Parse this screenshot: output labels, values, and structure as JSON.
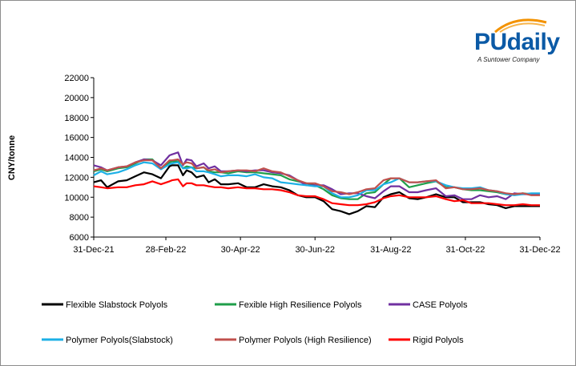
{
  "logo": {
    "brand": "PUdaily",
    "tagline": "A Suntower Company"
  },
  "colors": {
    "flexible_slabstock": "#000000",
    "flexible_hr": "#1f9e4a",
    "case": "#7030a0",
    "polymer_slabstock": "#1cb0e6",
    "polymer_hr": "#c0504d",
    "rigid": "#ff0000",
    "logo_blue": "#0b5aa6",
    "logo_orange": "#f39200"
  },
  "chart_data": {
    "type": "line",
    "title": "",
    "xlabel": "",
    "ylabel": "CNY/tonne",
    "ylim": [
      6000,
      22000
    ],
    "yticks": [
      6000,
      8000,
      10000,
      12000,
      14000,
      16000,
      18000,
      20000,
      22000
    ],
    "ytick_labels": [
      "6000",
      "8000",
      "10000",
      "12000",
      "14000",
      "16000",
      "18000",
      "20000",
      "22000"
    ],
    "xlim": [
      0,
      365
    ],
    "xticks": [
      0,
      59,
      120,
      181,
      243,
      304,
      365
    ],
    "xtick_labels": [
      "31-Dec-21",
      "28-Feb-22",
      "30-Apr-22",
      "30-Jun-22",
      "31-Aug-22",
      "31-Oct-22",
      "31-Dec-22"
    ],
    "x_unit": "days since 31-Dec-21",
    "x": [
      0,
      6,
      11,
      20,
      27,
      34,
      41,
      48,
      55,
      62,
      64,
      69,
      73,
      76,
      80,
      84,
      90,
      94,
      99,
      104,
      110,
      118,
      125,
      132,
      139,
      146,
      153,
      160,
      167,
      174,
      181,
      188,
      195,
      202,
      209,
      216,
      223,
      230,
      237,
      243,
      250,
      258,
      265,
      272,
      280,
      288,
      295,
      302,
      309,
      316,
      323,
      330,
      337,
      344,
      351,
      358,
      365
    ],
    "series": [
      {
        "name": "Flexible Slabstock Polyols",
        "values": [
          11500,
          11700,
          11000,
          11600,
          11700,
          12100,
          12500,
          12300,
          11900,
          13100,
          13200,
          13200,
          12200,
          12700,
          12500,
          12000,
          12200,
          11500,
          11800,
          11300,
          11300,
          11400,
          11000,
          11000,
          11300,
          11100,
          11000,
          10700,
          10200,
          10000,
          10000,
          9600,
          8800,
          8600,
          8300,
          8600,
          9100,
          9000,
          10000,
          10300,
          10500,
          9900,
          9800,
          10000,
          10300,
          10000,
          10000,
          9500,
          9500,
          9500,
          9300,
          9200,
          8900,
          9100,
          9100,
          9100,
          9100
        ]
      },
      {
        "name": "Fexible High Resilience Polyols",
        "values": [
          12600,
          12800,
          12600,
          12900,
          13000,
          13400,
          13800,
          13800,
          12900,
          13500,
          13600,
          13600,
          12900,
          13100,
          13000,
          12900,
          13000,
          12600,
          12500,
          12500,
          12400,
          12600,
          12500,
          12500,
          12400,
          12300,
          12200,
          11800,
          11600,
          11400,
          11200,
          10800,
          10200,
          9900,
          9800,
          9800,
          10400,
          10500,
          11300,
          11900,
          11900,
          11000,
          11200,
          11400,
          11600,
          11000,
          11000,
          10800,
          10700,
          10700,
          10600,
          10500,
          10300,
          10300,
          10400,
          10300,
          10300
        ]
      },
      {
        "name": "CASE Polyols",
        "values": [
          13200,
          13000,
          12700,
          13000,
          13100,
          13500,
          13800,
          13700,
          13200,
          14200,
          14300,
          14500,
          13200,
          13800,
          13700,
          13100,
          13400,
          12900,
          13100,
          12600,
          12600,
          12700,
          12600,
          12700,
          12700,
          12500,
          12400,
          12200,
          11700,
          11200,
          11200,
          11200,
          10800,
          10300,
          10400,
          10400,
          10100,
          9900,
          10600,
          11100,
          11100,
          10500,
          10500,
          10700,
          10900,
          10100,
          10200,
          9800,
          9800,
          10200,
          10000,
          10100,
          9800,
          10400,
          10300,
          10300,
          10300
        ]
      },
      {
        "name": "Polymer Polyols(Slabstock)",
        "values": [
          12200,
          12600,
          12300,
          12500,
          12800,
          13200,
          13500,
          13400,
          12800,
          13300,
          13400,
          13500,
          12900,
          12900,
          13000,
          12600,
          12600,
          12500,
          12300,
          12100,
          12200,
          12200,
          12100,
          12300,
          12000,
          11900,
          11500,
          11400,
          11300,
          11200,
          11100,
          11100,
          10400,
          10000,
          10000,
          10200,
          10700,
          10700,
          11300,
          11500,
          11900,
          11500,
          11500,
          11600,
          11600,
          11200,
          11000,
          10900,
          10900,
          11000,
          10700,
          10600,
          10300,
          10200,
          10300,
          10400,
          10400
        ]
      },
      {
        "name": "Polymer Polyols (High Resilience)",
        "values": [
          12700,
          12900,
          12700,
          13000,
          13100,
          13500,
          13700,
          13700,
          12900,
          13700,
          13700,
          13800,
          13300,
          13500,
          13400,
          12900,
          13000,
          12700,
          12800,
          12500,
          12600,
          12700,
          12700,
          12600,
          12900,
          12600,
          12500,
          12100,
          11700,
          11400,
          11400,
          11100,
          10600,
          10500,
          10300,
          10500,
          10800,
          10900,
          11700,
          11900,
          11900,
          11500,
          11500,
          11600,
          11700,
          10900,
          11000,
          10800,
          10800,
          10900,
          10700,
          10600,
          10400,
          10300,
          10400,
          10200,
          10200
        ]
      },
      {
        "name": "Rigid Polyols",
        "values": [
          11100,
          11000,
          10900,
          11000,
          11000,
          11200,
          11300,
          11600,
          11300,
          11600,
          11700,
          11800,
          11100,
          11400,
          11400,
          11200,
          11200,
          11100,
          11000,
          11000,
          10900,
          11000,
          10900,
          10900,
          10800,
          10800,
          10700,
          10500,
          10200,
          10100,
          10100,
          9800,
          9400,
          9300,
          9200,
          9200,
          9300,
          9500,
          9900,
          10100,
          10200,
          10000,
          10000,
          10000,
          10100,
          9800,
          9600,
          9700,
          9400,
          9400,
          9400,
          9300,
          9200,
          9200,
          9300,
          9200,
          9200
        ]
      }
    ],
    "legend": {
      "placement": "bottom",
      "entries": [
        "Flexible Slabstock Polyols",
        "Fexible High Resilience Polyols",
        "CASE Polyols",
        "Polymer Polyols(Slabstock)",
        "Polymer Polyols (High Resilience)",
        "Rigid Polyols"
      ]
    },
    "grid": false
  }
}
